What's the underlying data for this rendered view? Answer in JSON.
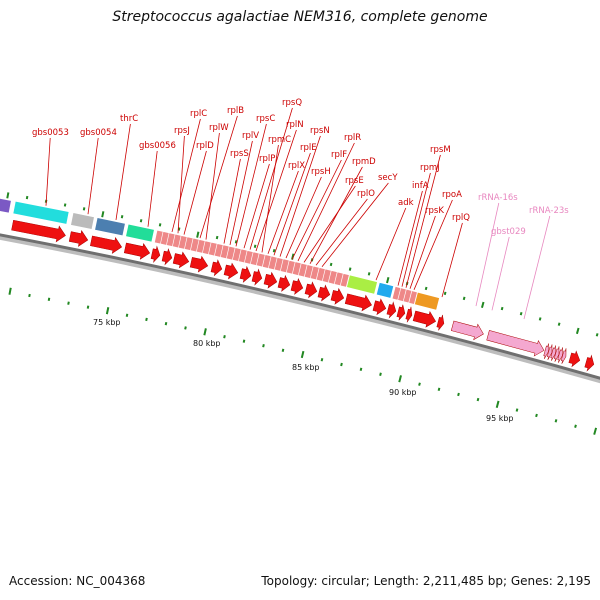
{
  "header": {
    "title": "Streptococcus agalactiae NEM316, complete genome"
  },
  "footer": {
    "accession": "Accession: NC_004368",
    "summary": "Topology: circular; Length: 2,211,485 bp; Genes: 2,195"
  },
  "map": {
    "kbp_labels": [
      "75 kbp",
      "80 kbp",
      "85 kbp",
      "90 kbp",
      "95 kbp"
    ],
    "gene_labels": [
      {
        "text": "gbs0053",
        "color": "#cc0000"
      },
      {
        "text": "gbs0054",
        "color": "#cc0000"
      },
      {
        "text": "thrC",
        "color": "#cc0000"
      },
      {
        "text": "gbs0056",
        "color": "#cc0000"
      },
      {
        "text": "rplC",
        "color": "#cc0000"
      },
      {
        "text": "rpsJ",
        "color": "#cc0000"
      },
      {
        "text": "rplD",
        "color": "#cc0000"
      },
      {
        "text": "rplB",
        "color": "#cc0000"
      },
      {
        "text": "rplW",
        "color": "#cc0000"
      },
      {
        "text": "rpsS",
        "color": "#cc0000"
      },
      {
        "text": "rplV",
        "color": "#cc0000"
      },
      {
        "text": "rpsC",
        "color": "#cc0000"
      },
      {
        "text": "rplP",
        "color": "#cc0000"
      },
      {
        "text": "rpsQ",
        "color": "#cc0000"
      },
      {
        "text": "rplN",
        "color": "#cc0000"
      },
      {
        "text": "rpmC",
        "color": "#cc0000"
      },
      {
        "text": "rplX",
        "color": "#cc0000"
      },
      {
        "text": "rplE",
        "color": "#cc0000"
      },
      {
        "text": "rpsN",
        "color": "#cc0000"
      },
      {
        "text": "rpsH",
        "color": "#cc0000"
      },
      {
        "text": "rplF",
        "color": "#cc0000"
      },
      {
        "text": "rplR",
        "color": "#cc0000"
      },
      {
        "text": "rpsE",
        "color": "#cc0000"
      },
      {
        "text": "rpmD",
        "color": "#cc0000"
      },
      {
        "text": "rplO",
        "color": "#cc0000"
      },
      {
        "text": "secY",
        "color": "#cc0000"
      },
      {
        "text": "adk",
        "color": "#cc0000"
      },
      {
        "text": "infA",
        "color": "#cc0000"
      },
      {
        "text": "rpmJ",
        "color": "#cc0000"
      },
      {
        "text": "rpsM",
        "color": "#cc0000"
      },
      {
        "text": "rpsK",
        "color": "#cc0000"
      },
      {
        "text": "rpoA",
        "color": "#cc0000"
      },
      {
        "text": "rplQ",
        "color": "#cc0000"
      },
      {
        "text": "rRNA-16s",
        "color": "#e888c0"
      },
      {
        "text": "gbst029",
        "color": "#e888c0"
      },
      {
        "text": "rRNA-23s",
        "color": "#e888c0"
      }
    ],
    "colors": {
      "cds": "#ee1111",
      "ribosomal_block": "#ee8888",
      "rrna": "#f4a8d0",
      "backbone": "#777777",
      "ticks": "#228822",
      "cog_colors": [
        "#7b59c4",
        "#22dddd",
        "#bbbbbb",
        "#4c7fb0",
        "#22dd99",
        "#ee8888",
        "#aaee44",
        "#22aaee",
        "#ee9922"
      ]
    }
  }
}
